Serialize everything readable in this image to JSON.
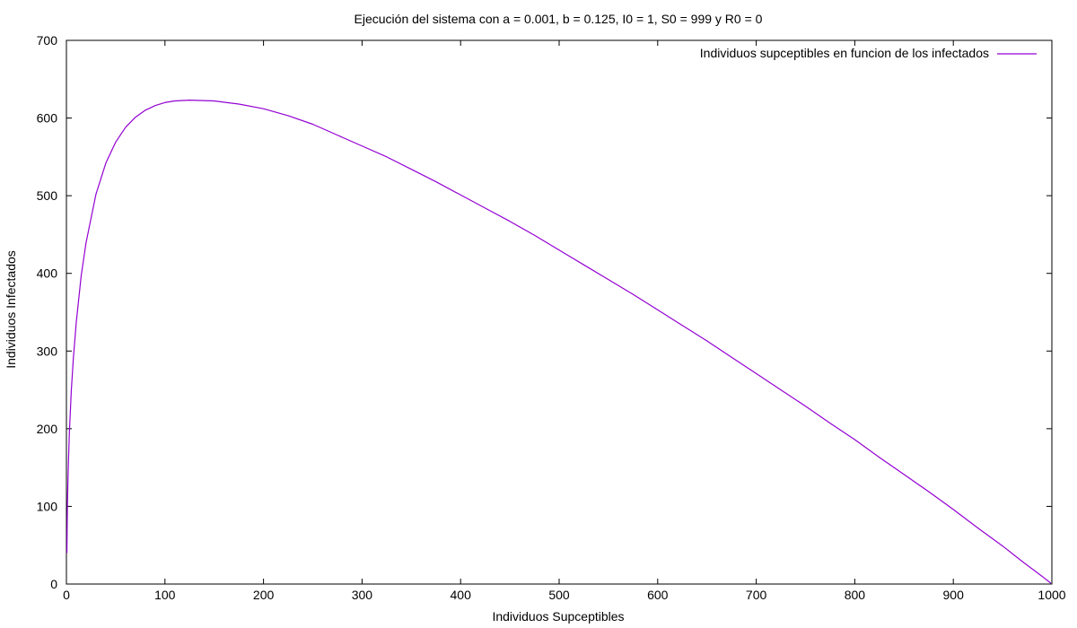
{
  "chart_data": {
    "type": "line",
    "title": "Ejecución del sistema con a = 0.001, b = 0.125, I0 = 1, S0 = 999 y R0 = 0",
    "xlabel": "Individuos Supceptibles",
    "ylabel": "Individuos Infectados",
    "xlim": [
      0,
      1000
    ],
    "ylim": [
      0,
      700
    ],
    "x_ticks": [
      0,
      100,
      200,
      300,
      400,
      500,
      600,
      700,
      800,
      900,
      1000
    ],
    "y_ticks": [
      0,
      100,
      200,
      300,
      400,
      500,
      600,
      700
    ],
    "grid": false,
    "legend_position": "top-right",
    "series": [
      {
        "name": "Individuos supceptibles en funcion de los infectados",
        "color": "#9400d3",
        "x": [
          999,
          990,
          970,
          950,
          925,
          900,
          875,
          850,
          825,
          800,
          775,
          750,
          725,
          700,
          675,
          650,
          625,
          600,
          575,
          550,
          525,
          500,
          475,
          450,
          425,
          400,
          375,
          350,
          325,
          300,
          275,
          250,
          225,
          200,
          175,
          150,
          125,
          110,
          100,
          90,
          80,
          70,
          60,
          50,
          40,
          30,
          20,
          15,
          10,
          7,
          5,
          3,
          2,
          1.5,
          1,
          0.8,
          0.5
        ],
        "y": [
          1,
          10,
          29,
          49,
          72,
          96,
          119,
          141,
          163,
          186,
          207,
          229,
          250,
          271,
          292,
          313,
          333,
          353,
          373,
          392,
          411,
          430,
          449,
          467,
          484,
          501,
          518,
          534,
          550,
          564,
          578,
          592,
          603,
          612,
          618,
          622,
          623,
          622,
          620,
          616,
          610,
          601,
          588,
          569,
          542,
          502,
          440,
          397,
          337,
          290,
          250,
          195,
          155,
          130,
          100,
          80,
          40
        ]
      }
    ]
  }
}
